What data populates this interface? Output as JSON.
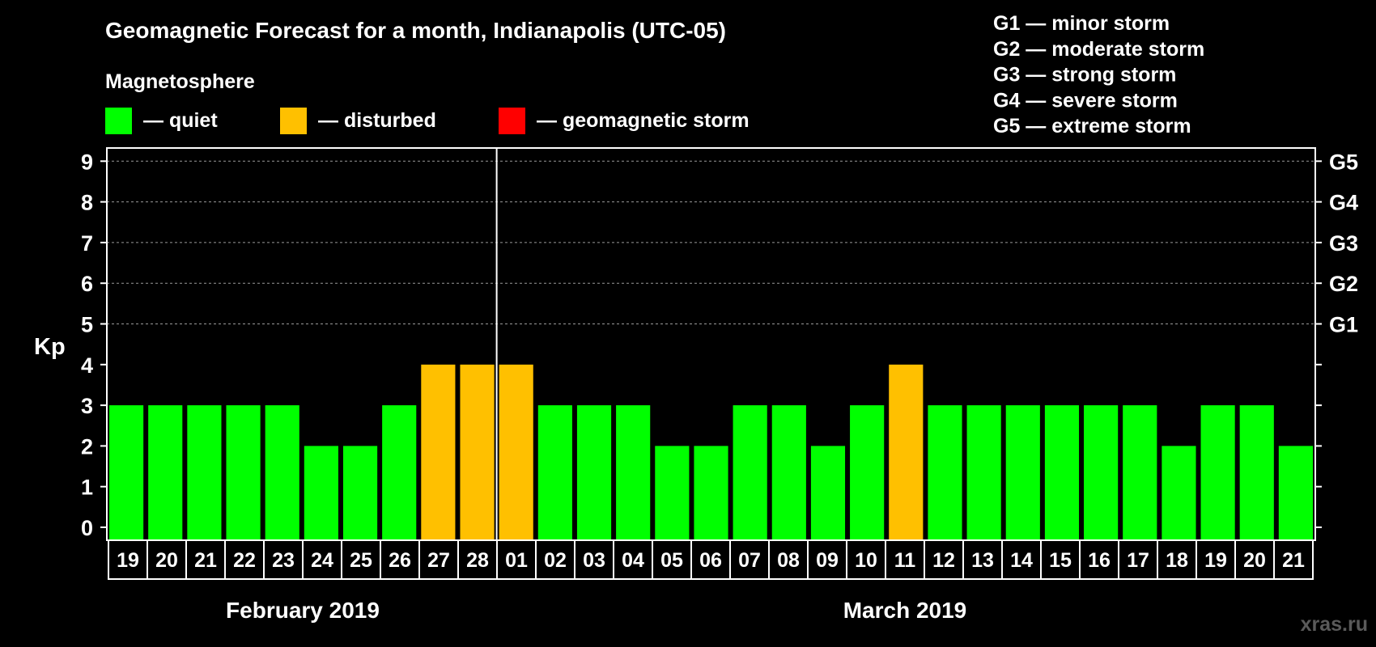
{
  "chart_data": {
    "type": "bar",
    "title": "Geomagnetic Forecast for a month, Indianapolis (UTC-05)",
    "ylabel": "Kp",
    "ylim": [
      0,
      9
    ],
    "yticks": [
      "0",
      "1",
      "2",
      "3",
      "4",
      "5",
      "6",
      "7",
      "8",
      "9"
    ],
    "storm_levels": [
      {
        "kp": 5,
        "label": "G1"
      },
      {
        "kp": 6,
        "label": "G2"
      },
      {
        "kp": 7,
        "label": "G3"
      },
      {
        "kp": 8,
        "label": "G4"
      },
      {
        "kp": 9,
        "label": "G5"
      }
    ],
    "legend": {
      "title": "Magnetosphere",
      "items": [
        {
          "label": "— quiet",
          "color": "#00ff00"
        },
        {
          "label": "— disturbed",
          "color": "#ffc000"
        },
        {
          "label": "— geomagnetic storm",
          "color": "#ff0000"
        }
      ]
    },
    "storm_legend": [
      "G1 — minor storm",
      "G2 — moderate storm",
      "G3 — strong storm",
      "G4 — severe storm",
      "G5 — extreme storm"
    ],
    "months": [
      {
        "label": "February 2019",
        "days": [
          "19",
          "20",
          "21",
          "22",
          "23",
          "24",
          "25",
          "26",
          "27",
          "28"
        ]
      },
      {
        "label": "March 2019",
        "days": [
          "01",
          "02",
          "03",
          "04",
          "05",
          "06",
          "07",
          "08",
          "09",
          "10",
          "11",
          "12",
          "13",
          "14",
          "15",
          "16",
          "17",
          "18",
          "19",
          "20",
          "21"
        ]
      }
    ],
    "values": [
      3,
      3,
      3,
      3,
      3,
      2,
      2,
      3,
      4,
      4,
      4,
      3,
      3,
      3,
      2,
      2,
      3,
      3,
      2,
      3,
      4,
      3,
      3,
      3,
      3,
      3,
      3,
      2,
      3,
      3,
      2
    ],
    "colors": {
      "quiet": "#00ff00",
      "disturbed": "#ffc000",
      "storm": "#ff0000"
    }
  },
  "watermark": "xras.ru"
}
